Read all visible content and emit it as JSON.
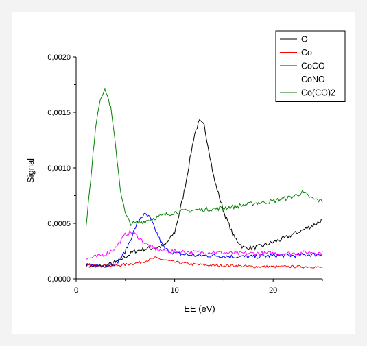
{
  "chart_data": {
    "type": "line",
    "title": "",
    "xlabel": "EE (eV)",
    "ylabel": "Signal",
    "xlim": [
      0,
      25
    ],
    "ylim": [
      0.0,
      0.002
    ],
    "x_ticks": [
      0,
      10,
      20
    ],
    "y_ticks": [
      0.0,
      0.0005,
      0.001,
      0.0015,
      0.002
    ],
    "x_tick_labels": [
      "0",
      "10",
      "20"
    ],
    "y_tick_labels": [
      "0,0000",
      "0,0005",
      "0,0010",
      "0,0015",
      "0,0020"
    ],
    "grid": false,
    "legend_position": "top-right",
    "series": [
      {
        "name": "O",
        "color": "#000000",
        "x": [
          1,
          2,
          3,
          4,
          5,
          6,
          7,
          8,
          9,
          10,
          10.5,
          11,
          11.5,
          12,
          12.5,
          13,
          13.5,
          14,
          15,
          16,
          17,
          18,
          19,
          20,
          21,
          22,
          23,
          24,
          25
        ],
        "y": [
          0.00012,
          0.00011,
          0.00012,
          0.00015,
          0.0002,
          0.00025,
          0.00027,
          0.00028,
          0.0003,
          0.00042,
          0.0006,
          0.0008,
          0.00105,
          0.0013,
          0.00142,
          0.00138,
          0.00115,
          0.0009,
          0.0006,
          0.00038,
          0.00028,
          0.00028,
          0.0003,
          0.00033,
          0.00036,
          0.0004,
          0.00044,
          0.00048,
          0.00053
        ],
        "noise": 2e-05
      },
      {
        "name": "Co",
        "color": "#ff0000",
        "x": [
          1,
          2,
          3,
          4,
          5,
          6,
          7,
          8,
          9,
          10,
          12,
          14,
          16,
          18,
          20,
          22,
          24,
          25
        ],
        "y": [
          0.00012,
          0.00012,
          0.00012,
          0.00012,
          0.00013,
          0.00014,
          0.00016,
          0.00019,
          0.00017,
          0.00015,
          0.00013,
          0.00012,
          0.00012,
          0.00011,
          0.00011,
          0.00011,
          0.00011,
          0.0001
        ],
        "noise": 1.2e-05
      },
      {
        "name": "CoCO",
        "color": "#0000ff",
        "x": [
          1,
          2,
          3,
          4,
          4.5,
          5,
          5.5,
          6,
          6.5,
          7,
          7.5,
          8,
          8.5,
          9,
          10,
          11,
          12,
          14,
          16,
          18,
          20,
          22,
          24,
          25
        ],
        "y": [
          0.00012,
          0.00012,
          0.00012,
          0.00014,
          0.00018,
          0.00025,
          0.00035,
          0.00046,
          0.00055,
          0.00058,
          0.00055,
          0.00045,
          0.00035,
          0.00027,
          0.00023,
          0.00022,
          0.00021,
          0.00021,
          0.0002,
          0.0002,
          0.00021,
          0.00021,
          0.00022,
          0.00022
        ],
        "noise": 1.8e-05
      },
      {
        "name": "CoNO",
        "color": "#ff00ff",
        "x": [
          1,
          2,
          3,
          4,
          4.5,
          5,
          5.5,
          6,
          6.5,
          7,
          8,
          9,
          10,
          12,
          14,
          16,
          18,
          20,
          22,
          24,
          25
        ],
        "y": [
          0.00018,
          0.0002,
          0.00022,
          0.00028,
          0.00034,
          0.0004,
          0.00042,
          0.0004,
          0.00036,
          0.00032,
          0.00027,
          0.00025,
          0.00025,
          0.00024,
          0.00024,
          0.00023,
          0.00023,
          0.00023,
          0.00023,
          0.00024,
          0.00023
        ],
        "noise": 1.8e-05
      },
      {
        "name": "Co(CO)2",
        "color": "#008000",
        "x": [
          1,
          1.5,
          2,
          2.5,
          3,
          3.5,
          4,
          4.5,
          5,
          5.5,
          6,
          7,
          8,
          10,
          12,
          14,
          16,
          18,
          20,
          22,
          23,
          24,
          25
        ],
        "y": [
          0.00048,
          0.0009,
          0.0014,
          0.00165,
          0.0017,
          0.00155,
          0.0012,
          0.0008,
          0.00058,
          0.0005,
          0.0005,
          0.00052,
          0.00055,
          0.0006,
          0.00062,
          0.00063,
          0.00065,
          0.00068,
          0.0007,
          0.00074,
          0.00078,
          0.00072,
          0.0007
        ],
        "noise": 2e-05
      }
    ]
  }
}
